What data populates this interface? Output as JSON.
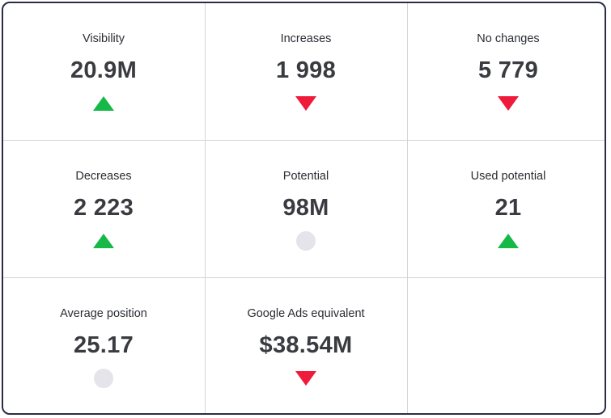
{
  "colors": {
    "up": "#16b848",
    "down": "#ee1b3a",
    "neutral": "#e4e4ea"
  },
  "metrics": [
    {
      "label": "Visibility",
      "value": "20.9M",
      "trend": "up",
      "icon": "triangle-up-icon"
    },
    {
      "label": "Increases",
      "value": "1 998",
      "trend": "down",
      "icon": "triangle-down-icon"
    },
    {
      "label": "No changes",
      "value": "5 779",
      "trend": "down",
      "icon": "triangle-down-icon"
    },
    {
      "label": "Decreases",
      "value": "2 223",
      "trend": "up",
      "icon": "triangle-up-icon"
    },
    {
      "label": "Potential",
      "value": "98M",
      "trend": "neutral",
      "icon": "circle-neutral-icon"
    },
    {
      "label": "Used potential",
      "value": "21",
      "trend": "up",
      "icon": "triangle-up-icon"
    },
    {
      "label": "Average position",
      "value": "25.17",
      "trend": "neutral",
      "icon": "circle-neutral-icon"
    },
    {
      "label": "Google Ads equivalent",
      "value": "$38.54M",
      "trend": "down",
      "icon": "triangle-down-icon"
    }
  ]
}
